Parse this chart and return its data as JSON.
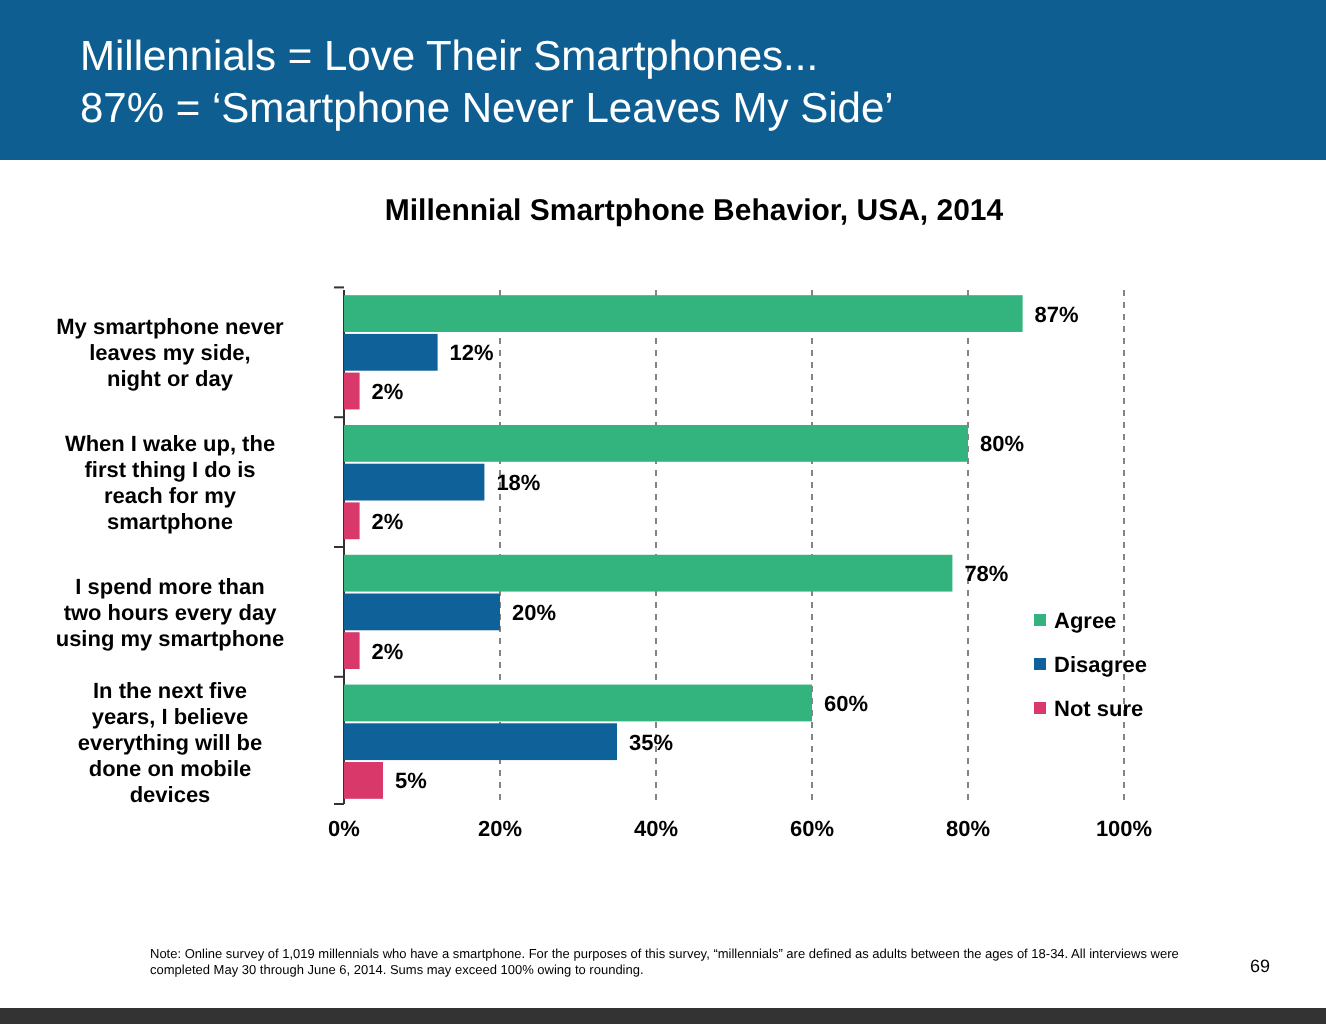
{
  "chart_data": {
    "type": "bar",
    "orientation": "horizontal",
    "title": "Millennials = Love Their Smartphones...\n87% = ‘Smartphone Never Leaves My Side’",
    "subtitle": "Millennial Smartphone Behavior, USA, 2014",
    "categories": [
      "My smartphone never leaves my side, night or day",
      "When I wake up, the first thing I do is reach for my smartphone",
      "I spend more than two hours every day using my smartphone",
      "In the next five years, I believe everything will be done on mobile devices"
    ],
    "series": [
      {
        "name": "Agree",
        "color": "#33b37d",
        "values": [
          87,
          80,
          78,
          60
        ],
        "value_labels": [
          "87%",
          "80%",
          "78%",
          "60%"
        ]
      },
      {
        "name": "Disagree",
        "color": "#0e6199",
        "values": [
          12,
          18,
          20,
          35
        ],
        "value_labels": [
          "12%",
          "18%",
          "20%",
          "35%"
        ]
      },
      {
        "name": "Not sure",
        "color": "#d9396a",
        "values": [
          2,
          2,
          2,
          5
        ],
        "value_labels": [
          "2%",
          "2%",
          "2%",
          "5%"
        ]
      }
    ],
    "xlim": [
      0,
      100
    ],
    "xticks": [
      {
        "value": 0,
        "label": "0%"
      },
      {
        "value": 20,
        "label": "20%"
      },
      {
        "value": 40,
        "label": "40%"
      },
      {
        "value": 60,
        "label": "60%"
      },
      {
        "value": 80,
        "label": "80%"
      },
      {
        "value": 100,
        "label": "100%"
      }
    ],
    "grid": "x",
    "legend": "bottom right",
    "annotations": [
      "Note: Online survey of 1,019 millennials who have a smartphone. For the purposes of this survey, “millennials” are defined as adults between the ages of 18-34. All interviews were completed May 30 through June 6, 2014. Sums may exceed 100% owing to rounding.",
      "69"
    ]
  }
}
